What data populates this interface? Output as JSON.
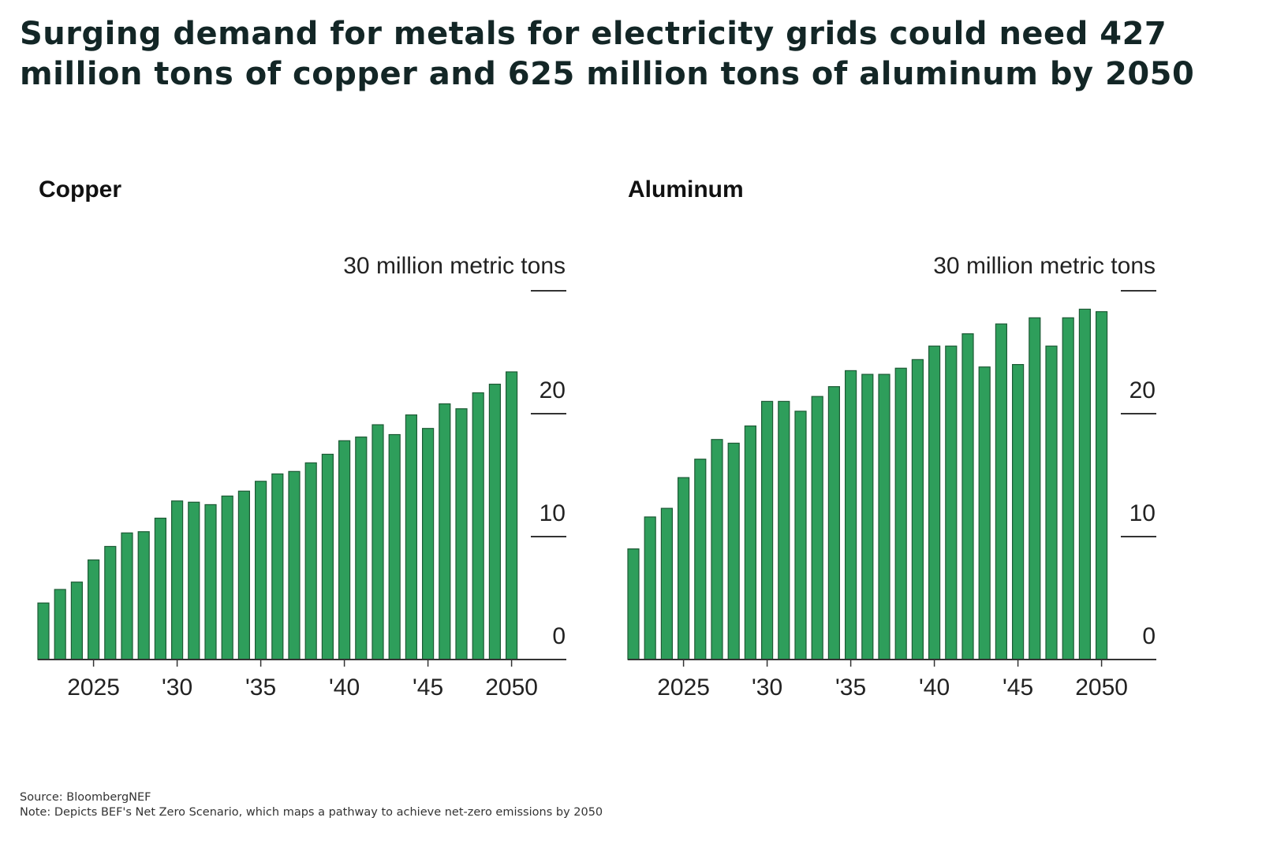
{
  "title": "Surging demand for metals for electricity grids could need 427 million tons of copper and 625 million tons of aluminum by 2050",
  "footer": {
    "source": "Source: BloombergNEF",
    "note": "Note: Depicts BEF's Net Zero Scenario, which maps a pathway to achieve net-zero emissions by 2050"
  },
  "chart_data": [
    {
      "type": "bar",
      "title": "Copper",
      "ylabel": "30 million metric tons",
      "ylim": [
        0,
        30
      ],
      "yticks": [
        "0",
        "10",
        "20",
        "30 million metric tons"
      ],
      "xticks": [
        {
          "year": 2025,
          "label": "2025"
        },
        {
          "year": 2030,
          "label": "'30"
        },
        {
          "year": 2035,
          "label": "'35"
        },
        {
          "year": 2040,
          "label": "'40"
        },
        {
          "year": 2045,
          "label": "'45"
        },
        {
          "year": 2050,
          "label": "2050"
        }
      ],
      "categories": [
        2022,
        2023,
        2024,
        2025,
        2026,
        2027,
        2028,
        2029,
        2030,
        2031,
        2032,
        2033,
        2034,
        2035,
        2036,
        2037,
        2038,
        2039,
        2040,
        2041,
        2042,
        2043,
        2044,
        2045,
        2046,
        2047,
        2048,
        2049,
        2050
      ],
      "values": [
        4.6,
        5.7,
        6.3,
        8.1,
        9.2,
        10.3,
        10.4,
        11.5,
        12.9,
        12.8,
        12.6,
        13.3,
        13.7,
        14.5,
        15.1,
        15.3,
        16.0,
        16.7,
        17.8,
        18.1,
        19.1,
        18.3,
        19.9,
        18.8,
        20.8,
        20.4,
        21.7,
        22.4,
        23.4
      ],
      "color": "#2e9e5b",
      "grid": "right-side ticks only"
    },
    {
      "type": "bar",
      "title": "Aluminum",
      "ylabel": "30 million metric tons",
      "ylim": [
        0,
        30
      ],
      "yticks": [
        "0",
        "10",
        "20",
        "30 million metric tons"
      ],
      "xticks": [
        {
          "year": 2025,
          "label": "2025"
        },
        {
          "year": 2030,
          "label": "'30"
        },
        {
          "year": 2035,
          "label": "'35"
        },
        {
          "year": 2040,
          "label": "'40"
        },
        {
          "year": 2045,
          "label": "'45"
        },
        {
          "year": 2050,
          "label": "2050"
        }
      ],
      "categories": [
        2022,
        2023,
        2024,
        2025,
        2026,
        2027,
        2028,
        2029,
        2030,
        2031,
        2032,
        2033,
        2034,
        2035,
        2036,
        2037,
        2038,
        2039,
        2040,
        2041,
        2042,
        2043,
        2044,
        2045,
        2046,
        2047,
        2048,
        2049,
        2050
      ],
      "values": [
        9.0,
        11.6,
        12.3,
        14.8,
        16.3,
        17.9,
        17.6,
        19.0,
        21.0,
        21.0,
        20.2,
        21.4,
        22.2,
        23.5,
        23.2,
        23.2,
        23.7,
        24.4,
        25.5,
        25.5,
        26.5,
        23.8,
        27.3,
        24.0,
        27.8,
        25.5,
        27.8,
        28.5,
        28.3
      ],
      "color": "#2e9e5b",
      "grid": "right-side ticks only"
    }
  ]
}
